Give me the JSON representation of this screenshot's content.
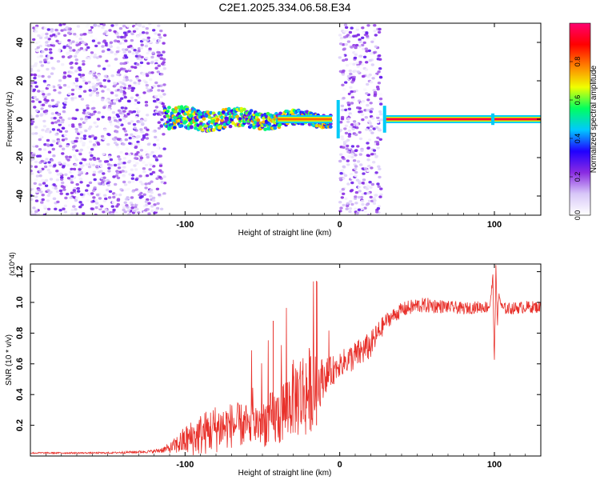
{
  "title": "C2E1.2025.334.06.58.E34",
  "chart_data": [
    {
      "type": "heatmap",
      "title": "C2E1.2025.334.06.58.E34",
      "xlabel": "Height of straight line (km)",
      "ylabel": "Frequency (Hz)",
      "xlim": [
        -200,
        130
      ],
      "ylim": [
        -50,
        50
      ],
      "x_ticks": [
        -100,
        0,
        100
      ],
      "y_ticks": [
        -40,
        -20,
        0,
        20,
        40
      ],
      "colorbar": {
        "label": "Normalized spectral amplitude",
        "range": [
          0,
          1
        ],
        "ticks": [
          0.0,
          0.2,
          0.4,
          0.6,
          0.8
        ],
        "tick_labels": [
          "0.0",
          "0.2",
          "0.4",
          "0.6",
          "0.8"
        ],
        "colormap": [
          "#ffffff",
          "#d8c8f8",
          "#8a2be2",
          "#2000ff",
          "#00c8ff",
          "#00ff60",
          "#f0ff00",
          "#ff8000",
          "#ff0000",
          "#ff0070"
        ]
      },
      "regions": [
        {
          "x": [
            -200,
            -113
          ],
          "kind": "broadband noise",
          "level": 0.15
        },
        {
          "x": [
            -113,
            -5
          ],
          "kind": "wandering tone",
          "freq_center": 0,
          "level": 0.55
        },
        {
          "x": [
            -40,
            -5
          ],
          "kind": "tone",
          "freq_center": 0,
          "level": 0.8
        },
        {
          "x": [
            0,
            27
          ],
          "kind": "broadband noise",
          "level": 0.15
        },
        {
          "x": [
            30,
            130
          ],
          "kind": "tone",
          "freq_center": 0,
          "level": 0.95
        }
      ]
    },
    {
      "type": "line",
      "xlabel": "Height of straight line (km)",
      "ylabel": "SNR (10 * v/v)",
      "y_multiplier": "(x10^4)",
      "xlim": [
        -200,
        130
      ],
      "ylim": [
        0,
        1.25
      ],
      "x_ticks": [
        -100,
        0,
        100
      ],
      "y_ticks": [
        0.2,
        0.4,
        0.6,
        0.8,
        1.0,
        1.2
      ],
      "y_tick_labels": [
        "0.2",
        "0.4",
        "0.6",
        "0.8",
        "1.0",
        "1.2"
      ],
      "series": [
        {
          "color": "#e8302a",
          "x": [
            -200,
            -150,
            -120,
            -110,
            -100,
            -90,
            -80,
            -70,
            -60,
            -50,
            -40,
            -30,
            -25,
            -20,
            -15,
            -10,
            -5,
            0,
            10,
            20,
            25,
            30,
            40,
            50,
            60,
            70,
            80,
            90,
            95,
            97,
            99,
            100,
            101,
            102,
            103,
            105,
            110,
            120,
            130
          ],
          "y": [
            0.02,
            0.02,
            0.03,
            0.05,
            0.1,
            0.14,
            0.18,
            0.2,
            0.2,
            0.22,
            0.25,
            0.38,
            0.4,
            0.42,
            0.45,
            0.52,
            0.55,
            0.6,
            0.65,
            0.72,
            0.8,
            0.88,
            0.95,
            0.98,
            0.98,
            0.97,
            0.96,
            0.97,
            0.97,
            0.98,
            1.15,
            0.62,
            1.22,
            0.88,
            1.05,
            0.96,
            0.96,
            0.97,
            0.97
          ],
          "noise_amplitude": [
            0.005,
            0.005,
            0.01,
            0.03,
            0.1,
            0.14,
            0.16,
            0.15,
            0.14,
            0.16,
            0.2,
            0.25,
            0.3,
            0.3,
            0.2,
            0.12,
            0.1,
            0.08,
            0.1,
            0.09,
            0.08,
            0.05,
            0.05,
            0.05,
            0.05,
            0.04,
            0.04,
            0.04,
            0.04,
            0.04,
            0.04,
            0.04,
            0.04,
            0.04,
            0.04,
            0.04,
            0.04,
            0.04,
            0.04
          ]
        }
      ],
      "annotations": [
        {
          "x": -15,
          "y": 1.14,
          "kind": "spike"
        },
        {
          "x": -43,
          "y": 0.88,
          "kind": "spike"
        }
      ]
    }
  ]
}
